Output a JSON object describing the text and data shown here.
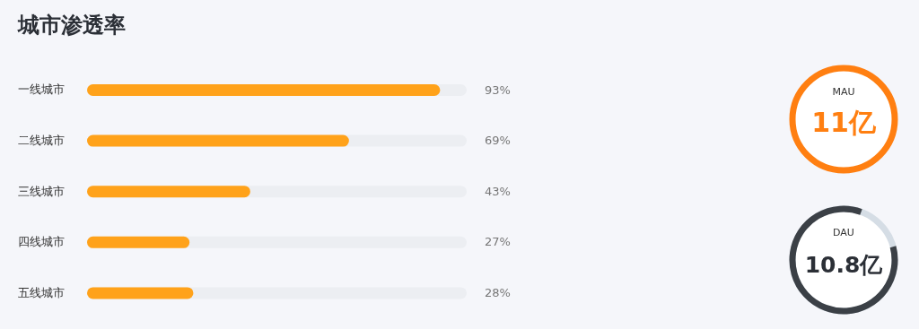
{
  "chart_data": [
    {
      "type": "bar",
      "orientation": "horizontal",
      "title": "城市渗透率",
      "categories": [
        "一线城市",
        "二线城市",
        "三线城市",
        "四线城市",
        "五线城市"
      ],
      "values": [
        93,
        69,
        43,
        27,
        28
      ],
      "value_labels": [
        "93%",
        "69%",
        "43%",
        "27%",
        "28%"
      ],
      "color": "#ffa21a",
      "xlim": [
        0,
        100
      ],
      "tick_labels": "y"
    },
    {
      "type": "other",
      "annotations": [
        "MAU",
        "11亿",
        "DAU",
        "10.8亿"
      ]
    }
  ]
}
